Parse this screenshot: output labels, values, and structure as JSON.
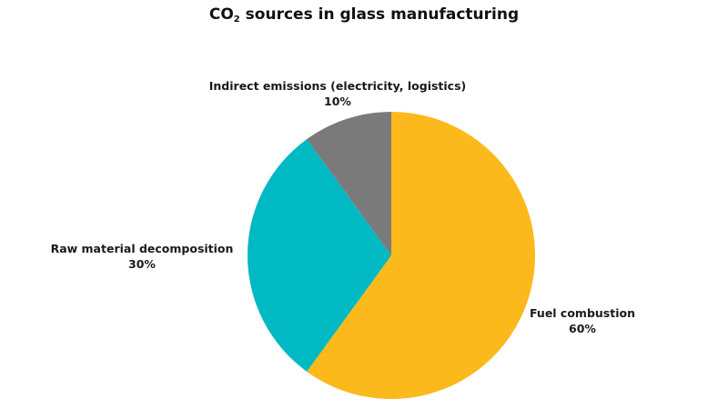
{
  "chart_data": {
    "type": "pie",
    "title": {
      "prefix": "CO",
      "subscript": "2",
      "suffix": " sources in glass manufacturing"
    },
    "slices": [
      {
        "label": "Fuel combustion",
        "value": 60,
        "value_label": "60%",
        "color": "#FBB91C"
      },
      {
        "label": "Raw material decomposition",
        "value": 30,
        "value_label": "30%",
        "color": "#00B9C2"
      },
      {
        "label": "Indirect emissions (electricity, logistics)",
        "value": 10,
        "value_label": "10%",
        "color": "#7A7A7A"
      }
    ],
    "start_angle": "top (12 o'clock)",
    "direction": "clockwise",
    "legend": "none"
  }
}
